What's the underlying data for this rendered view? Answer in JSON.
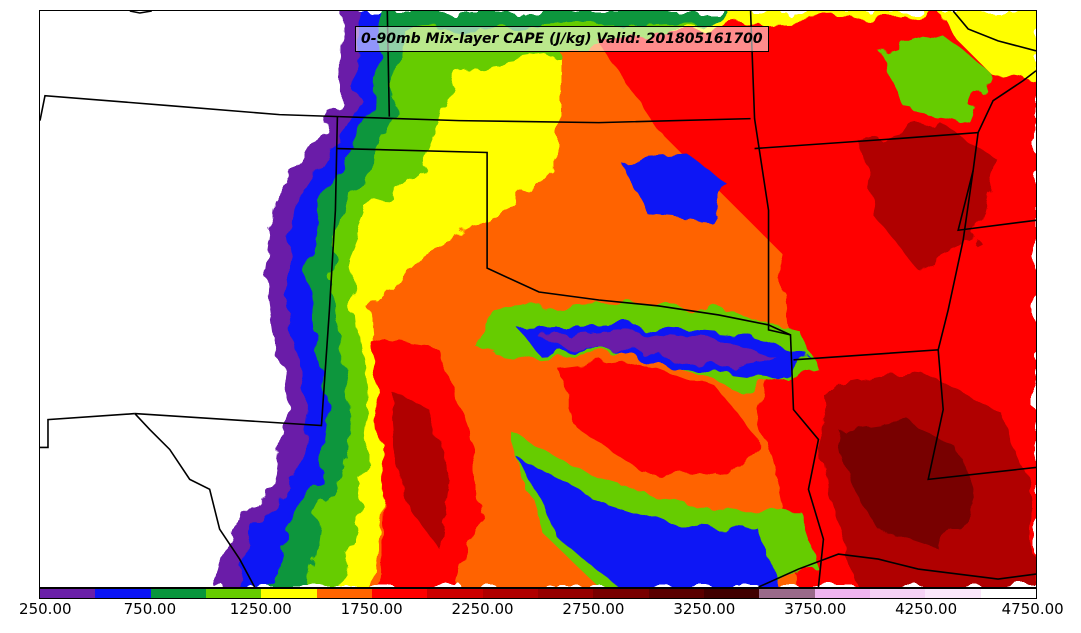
{
  "title": "0-90mb Mix-layer CAPE (J/kg) Valid: 201805161700",
  "colorbar": {
    "colors": [
      "#6a1fa8",
      "#0a14f5",
      "#08963c",
      "#66cc00",
      "#ffff00",
      "#ff6400",
      "#ff0000",
      "#cc0000",
      "#b00000",
      "#960000",
      "#780000",
      "#5a0000",
      "#400000",
      "#9a6a8a",
      "#f0b4f0",
      "#f5d2f5",
      "#fae6fa",
      "#ffffff"
    ],
    "tick_labels": [
      "250.00",
      "750.00",
      "1250.00",
      "1750.00",
      "2250.00",
      "2750.00",
      "3250.00",
      "3750.00",
      "4250.00",
      "4750.00"
    ]
  },
  "map": {
    "field_colors": {
      "purple": "#6a1fa8",
      "blue": "#0a14f5",
      "dark_green": "#08963c",
      "light_green": "#66cc00",
      "yellow": "#ffff00",
      "orange": "#ff6400",
      "red": "#ff0000",
      "dark_red": "#b00000",
      "maroon": "#780000"
    },
    "boundary_color": "#000000"
  }
}
